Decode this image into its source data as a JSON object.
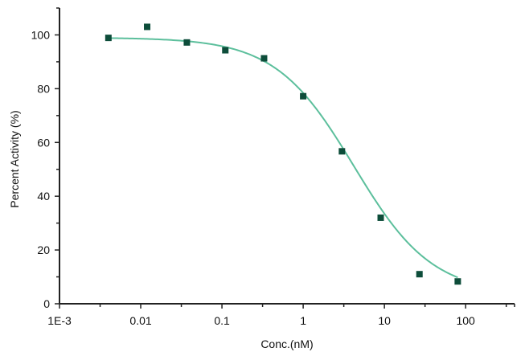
{
  "chart_data": {
    "type": "scatter",
    "title": "",
    "xlabel": "Conc.(nM)",
    "ylabel": "Percent Activity (%)",
    "x_scale": "log",
    "xlim": [
      0.001,
      400
    ],
    "ylim": [
      0,
      110
    ],
    "x_ticks": [
      {
        "value": 0.001,
        "label": "1E-3"
      },
      {
        "value": 0.01,
        "label": "0.01"
      },
      {
        "value": 0.1,
        "label": "0.1"
      },
      {
        "value": 1,
        "label": "1"
      },
      {
        "value": 10,
        "label": "10"
      },
      {
        "value": 100,
        "label": "100"
      }
    ],
    "y_ticks": [
      {
        "value": 0,
        "label": "0"
      },
      {
        "value": 20,
        "label": "20"
      },
      {
        "value": 40,
        "label": "40"
      },
      {
        "value": 60,
        "label": "60"
      },
      {
        "value": 80,
        "label": "80"
      },
      {
        "value": 100,
        "label": "100"
      }
    ],
    "grid": false,
    "legend": "none",
    "series": [
      {
        "kind": "points",
        "marker": "square",
        "color": "#0d4d3a",
        "x": [
          0.004,
          0.012,
          0.037,
          0.11,
          0.33,
          1.0,
          3.0,
          9.0,
          27,
          80
        ],
        "y": [
          98.9,
          103.0,
          97.2,
          94.3,
          91.3,
          77.2,
          56.7,
          32.0,
          11.0,
          8.3
        ]
      },
      {
        "kind": "fit-curve",
        "color": "#5cbf9c",
        "model": "4PL",
        "params": {
          "top": 99,
          "bottom": 3.5,
          "ic50": 4.2,
          "hill": 0.9
        },
        "x_range": [
          0.004,
          80
        ]
      }
    ]
  }
}
